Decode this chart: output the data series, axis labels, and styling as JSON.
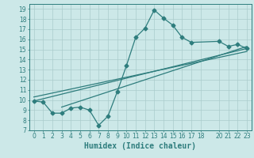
{
  "title": "",
  "xlabel": "Humidex (Indice chaleur)",
  "bg_color": "#cce8e8",
  "line_color": "#2e7d7d",
  "grid_color": "#aacccc",
  "xlim": [
    -0.5,
    23.5
  ],
  "ylim": [
    7,
    19.5
  ],
  "xticks": [
    0,
    1,
    2,
    3,
    4,
    5,
    6,
    7,
    8,
    9,
    10,
    11,
    12,
    13,
    14,
    15,
    16,
    17,
    18,
    20,
    21,
    22,
    23
  ],
  "yticks": [
    7,
    8,
    9,
    10,
    11,
    12,
    13,
    14,
    15,
    16,
    17,
    18,
    19
  ],
  "scatter_x": [
    0,
    1,
    2,
    3,
    4,
    5,
    6,
    7,
    8,
    9,
    10,
    11,
    12,
    13,
    14,
    15,
    16,
    17,
    20,
    21,
    22,
    23
  ],
  "scatter_y": [
    9.9,
    9.8,
    8.7,
    8.7,
    9.2,
    9.3,
    9.0,
    7.5,
    8.4,
    10.8,
    13.4,
    16.2,
    17.1,
    18.9,
    18.1,
    17.4,
    16.2,
    15.7,
    15.8,
    15.3,
    15.5,
    15.1
  ],
  "line1_x": [
    0,
    23
  ],
  "line1_y": [
    9.9,
    15.1
  ],
  "line2_x": [
    0,
    23
  ],
  "line2_y": [
    10.3,
    14.8
  ],
  "line3_x": [
    3,
    23
  ],
  "line3_y": [
    9.3,
    15.3
  ],
  "marker_size": 2.5,
  "line_width": 0.9,
  "tick_fontsize": 5.5,
  "label_fontsize": 7.0
}
